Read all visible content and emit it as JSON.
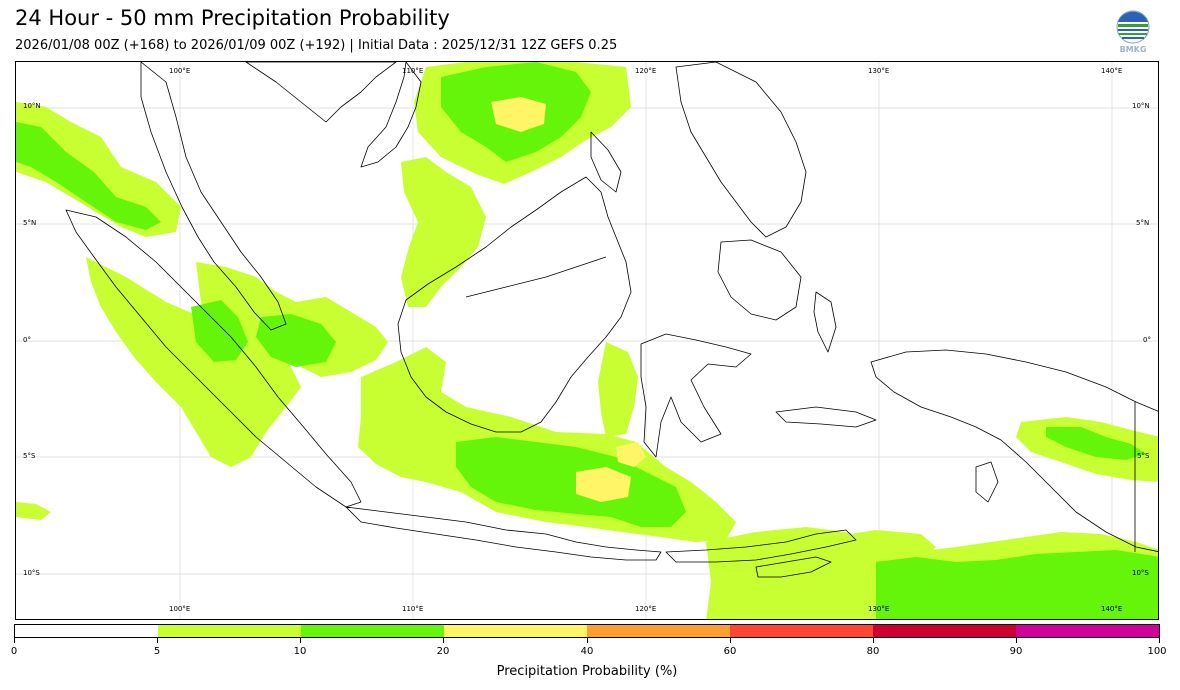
{
  "header": {
    "title": "24 Hour - 50 mm Precipitation Probability",
    "subtitle": "2026/01/08 00Z (+168) to 2026/01/09 00Z (+192) | Initial Data : 2025/12/31 12Z GEFS 0.25"
  },
  "logo": {
    "text": "BMKG"
  },
  "map": {
    "lon_top_labels": [
      "100°E",
      "110°E",
      "120°E",
      "130°E",
      "140°E"
    ],
    "lon_bottom_labels": [
      "100°E",
      "110°E",
      "120°E",
      "130°E",
      "140°E"
    ],
    "lat_left_labels": [
      "10°N",
      "5°N",
      "0°",
      "5°S",
      "10°S"
    ],
    "lat_right_labels": [
      "10°N",
      "5°N",
      "0°",
      "5°S",
      "10°S"
    ],
    "colors": {
      "band_5_10": "#c8ff32",
      "band_10_20": "#64f50a",
      "band_20_40": "#fff565",
      "coastline": "#000000",
      "gridline": "#d8d8d8"
    }
  },
  "colorbar": {
    "segments": [
      {
        "from": 0,
        "to": 5,
        "color": "#ffffff"
      },
      {
        "from": 5,
        "to": 10,
        "color": "#c8ff32"
      },
      {
        "from": 10,
        "to": 20,
        "color": "#64f50a"
      },
      {
        "from": 20,
        "to": 40,
        "color": "#fff565"
      },
      {
        "from": 40,
        "to": 60,
        "color": "#ff9f32"
      },
      {
        "from": 60,
        "to": 80,
        "color": "#ff4632"
      },
      {
        "from": 80,
        "to": 90,
        "color": "#cd0032"
      },
      {
        "from": 90,
        "to": 100,
        "color": "#d2009b"
      }
    ],
    "tick_labels": [
      "0",
      "5",
      "10",
      "20",
      "40",
      "60",
      "80",
      "90",
      "100"
    ],
    "label": "Precipitation Probability (%)"
  }
}
